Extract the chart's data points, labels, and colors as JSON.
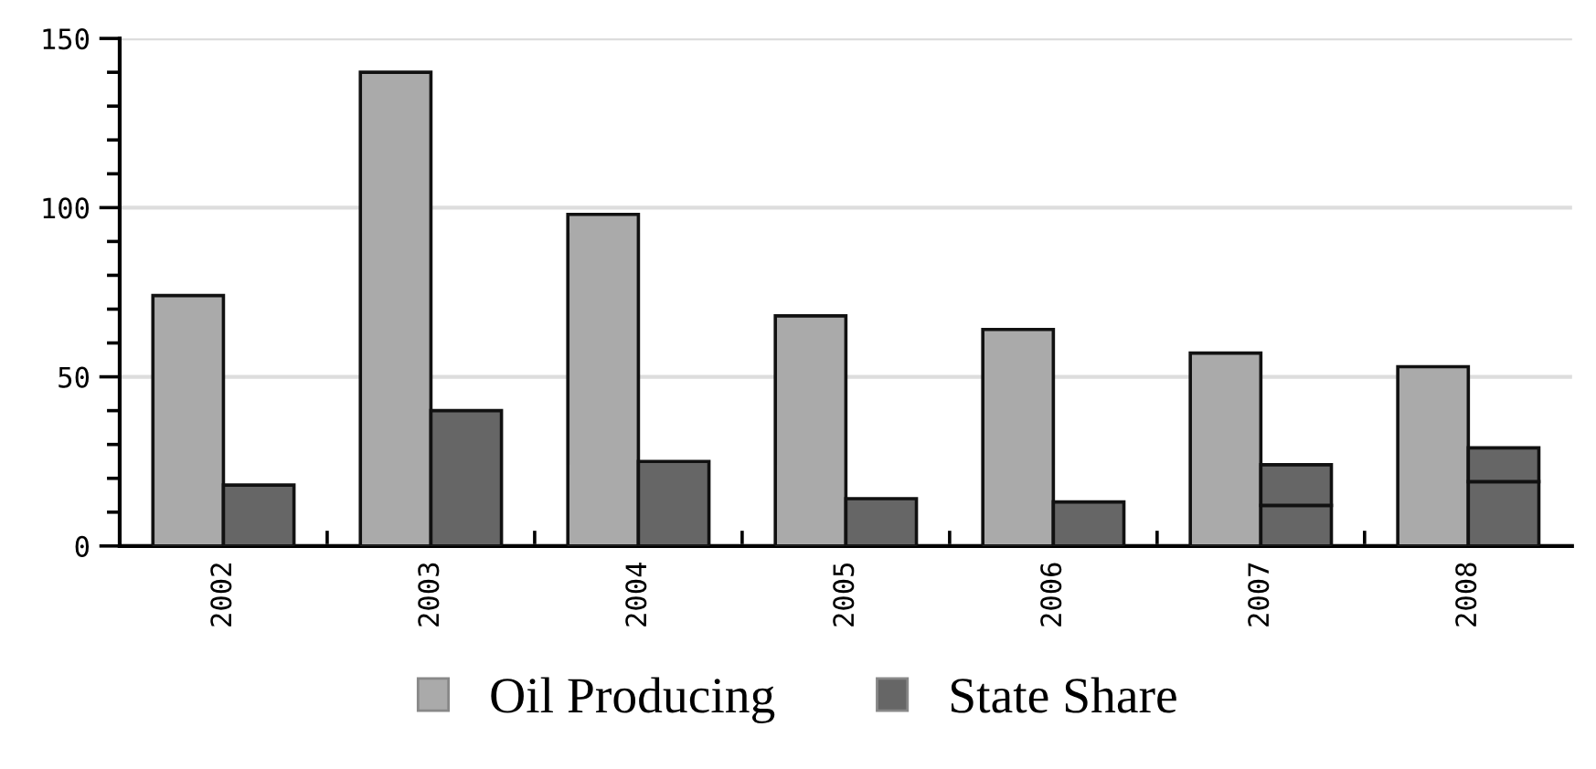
{
  "chart_data": {
    "type": "bar",
    "categories": [
      "2002",
      "2003",
      "2004",
      "2005",
      "2006",
      "2007",
      "2008"
    ],
    "series": [
      {
        "name": "Oil Producing",
        "color": "#aaaaaa",
        "values": [
          74,
          140,
          98,
          68,
          64,
          57,
          53
        ]
      },
      {
        "name": "State Share",
        "color": "#666666",
        "values": [
          18,
          40,
          25,
          14,
          13,
          12,
          19
        ]
      },
      {
        "color": "#666666",
        "values": [
          null,
          null,
          null,
          null,
          null,
          12,
          10
        ],
        "base": [
          null,
          null,
          null,
          null,
          null,
          12,
          19
        ]
      }
    ],
    "ylim": [
      0,
      150
    ],
    "yticks": [
      0,
      50,
      100,
      150
    ],
    "grid": "y",
    "legend": "bottom"
  }
}
